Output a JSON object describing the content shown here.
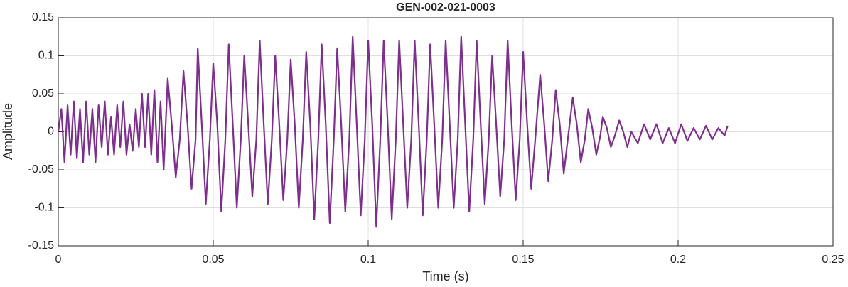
{
  "chart_data": {
    "type": "line",
    "title": "GEN-002-021-0003",
    "xlabel": "Time (s)",
    "ylabel": "Amplitude",
    "xlim": [
      0,
      0.25
    ],
    "xticks": [
      0,
      0.05,
      0.1,
      0.15,
      0.2,
      0.25
    ],
    "ylim": [
      -0.15,
      0.15
    ],
    "yticks": [
      -0.15,
      -0.1,
      -0.05,
      0,
      0.05,
      0.1,
      0.15
    ],
    "grid": true,
    "series": [
      {
        "color": "#7e2f8e",
        "x": [
          0,
          0.001,
          0.002,
          0.003,
          0.004,
          0.005,
          0.006,
          0.007,
          0.008,
          0.009,
          0.01,
          0.011,
          0.012,
          0.013,
          0.014,
          0.015,
          0.016,
          0.017,
          0.018,
          0.019,
          0.02,
          0.021,
          0.022,
          0.023,
          0.024,
          0.025,
          0.026,
          0.027,
          0.028,
          0.029,
          0.03,
          0.031,
          0.032,
          0.033,
          0.034,
          0.0353,
          0.0366,
          0.0379,
          0.0392,
          0.0404,
          0.0417,
          0.043,
          0.0443,
          0.045,
          0.0463,
          0.0476,
          0.0489,
          0.05,
          0.0513,
          0.0526,
          0.0539,
          0.055,
          0.0563,
          0.0576,
          0.0589,
          0.06,
          0.0613,
          0.0626,
          0.0639,
          0.065,
          0.0663,
          0.0676,
          0.0689,
          0.07,
          0.0713,
          0.0726,
          0.0739,
          0.075,
          0.0763,
          0.0776,
          0.0789,
          0.08,
          0.0813,
          0.0826,
          0.0839,
          0.085,
          0.0863,
          0.0876,
          0.0889,
          0.09,
          0.0913,
          0.0926,
          0.0939,
          0.095,
          0.0963,
          0.0976,
          0.0989,
          0.1,
          0.1013,
          0.1026,
          0.1039,
          0.105,
          0.1063,
          0.1076,
          0.1089,
          0.11,
          0.1113,
          0.1126,
          0.1139,
          0.115,
          0.1163,
          0.1176,
          0.1189,
          0.12,
          0.1213,
          0.1226,
          0.1239,
          0.125,
          0.1263,
          0.1276,
          0.1289,
          0.13,
          0.1313,
          0.1326,
          0.1339,
          0.135,
          0.1363,
          0.1376,
          0.1389,
          0.14,
          0.1413,
          0.1426,
          0.1439,
          0.145,
          0.1463,
          0.1476,
          0.1489,
          0.15,
          0.1513,
          0.1526,
          0.1539,
          0.1555,
          0.1568,
          0.1581,
          0.1594,
          0.1605,
          0.1618,
          0.1631,
          0.1644,
          0.166,
          0.1673,
          0.1686,
          0.1699,
          0.171,
          0.1723,
          0.1736,
          0.1749,
          0.1757,
          0.177,
          0.1783,
          0.1796,
          0.181,
          0.1823,
          0.1836,
          0.1849,
          0.187,
          0.189,
          0.191,
          0.193,
          0.195,
          0.197,
          0.199,
          0.201,
          0.203,
          0.205,
          0.207,
          0.209,
          0.211,
          0.213,
          0.215,
          0.216
        ],
        "values": [
          0,
          0.03,
          -0.04,
          0.035,
          -0.03,
          0.04,
          -0.035,
          0.03,
          -0.04,
          0.04,
          -0.03,
          0.03,
          -0.04,
          0.035,
          -0.02,
          0.04,
          -0.03,
          0.02,
          -0.03,
          0.035,
          -0.02,
          0.04,
          -0.03,
          0.01,
          -0.025,
          0.03,
          -0.02,
          0.05,
          -0.02,
          0.05,
          -0.03,
          0.055,
          -0.04,
          0.04,
          -0.05,
          0.07,
          0.01,
          -0.06,
          -0.01,
          0.08,
          0.01,
          -0.075,
          -0.01,
          0.11,
          0.01,
          -0.095,
          -0.01,
          0.09,
          0.01,
          -0.105,
          -0.01,
          0.115,
          0.01,
          -0.1,
          -0.01,
          0.1,
          0.01,
          -0.085,
          -0.01,
          0.12,
          0.01,
          -0.095,
          -0.01,
          0.1,
          0.01,
          -0.09,
          -0.01,
          0.095,
          0.01,
          -0.1,
          -0.01,
          0.105,
          0.01,
          -0.115,
          -0.01,
          0.115,
          0.01,
          -0.12,
          -0.01,
          0.11,
          0.01,
          -0.105,
          -0.01,
          0.125,
          0.01,
          -0.11,
          -0.01,
          0.12,
          0.01,
          -0.125,
          -0.01,
          0.12,
          0.01,
          -0.115,
          -0.01,
          0.12,
          0.01,
          -0.1,
          -0.01,
          0.12,
          0.01,
          -0.11,
          -0.01,
          0.115,
          0.01,
          -0.1,
          -0.01,
          0.12,
          0.01,
          -0.1,
          -0.01,
          0.125,
          0.01,
          -0.105,
          -0.01,
          0.12,
          0.01,
          -0.095,
          -0.01,
          0.1,
          0.01,
          -0.085,
          -0.01,
          0.12,
          0.01,
          -0.09,
          -0.01,
          0.105,
          0.01,
          -0.075,
          -0.01,
          0.075,
          0.01,
          -0.065,
          -0.01,
          0.055,
          0.01,
          -0.055,
          -0.01,
          0.045,
          0.01,
          -0.04,
          -0.01,
          0.03,
          0.005,
          -0.03,
          -0.005,
          0.02,
          0.005,
          -0.02,
          -0.005,
          0.015,
          0,
          -0.02,
          0,
          -0.015,
          0.01,
          -0.01,
          0.01,
          -0.015,
          0.005,
          -0.015,
          0.01,
          -0.012,
          0.005,
          -0.01,
          0.008,
          -0.01,
          0.005,
          -0.005,
          0.008
        ]
      }
    ]
  }
}
